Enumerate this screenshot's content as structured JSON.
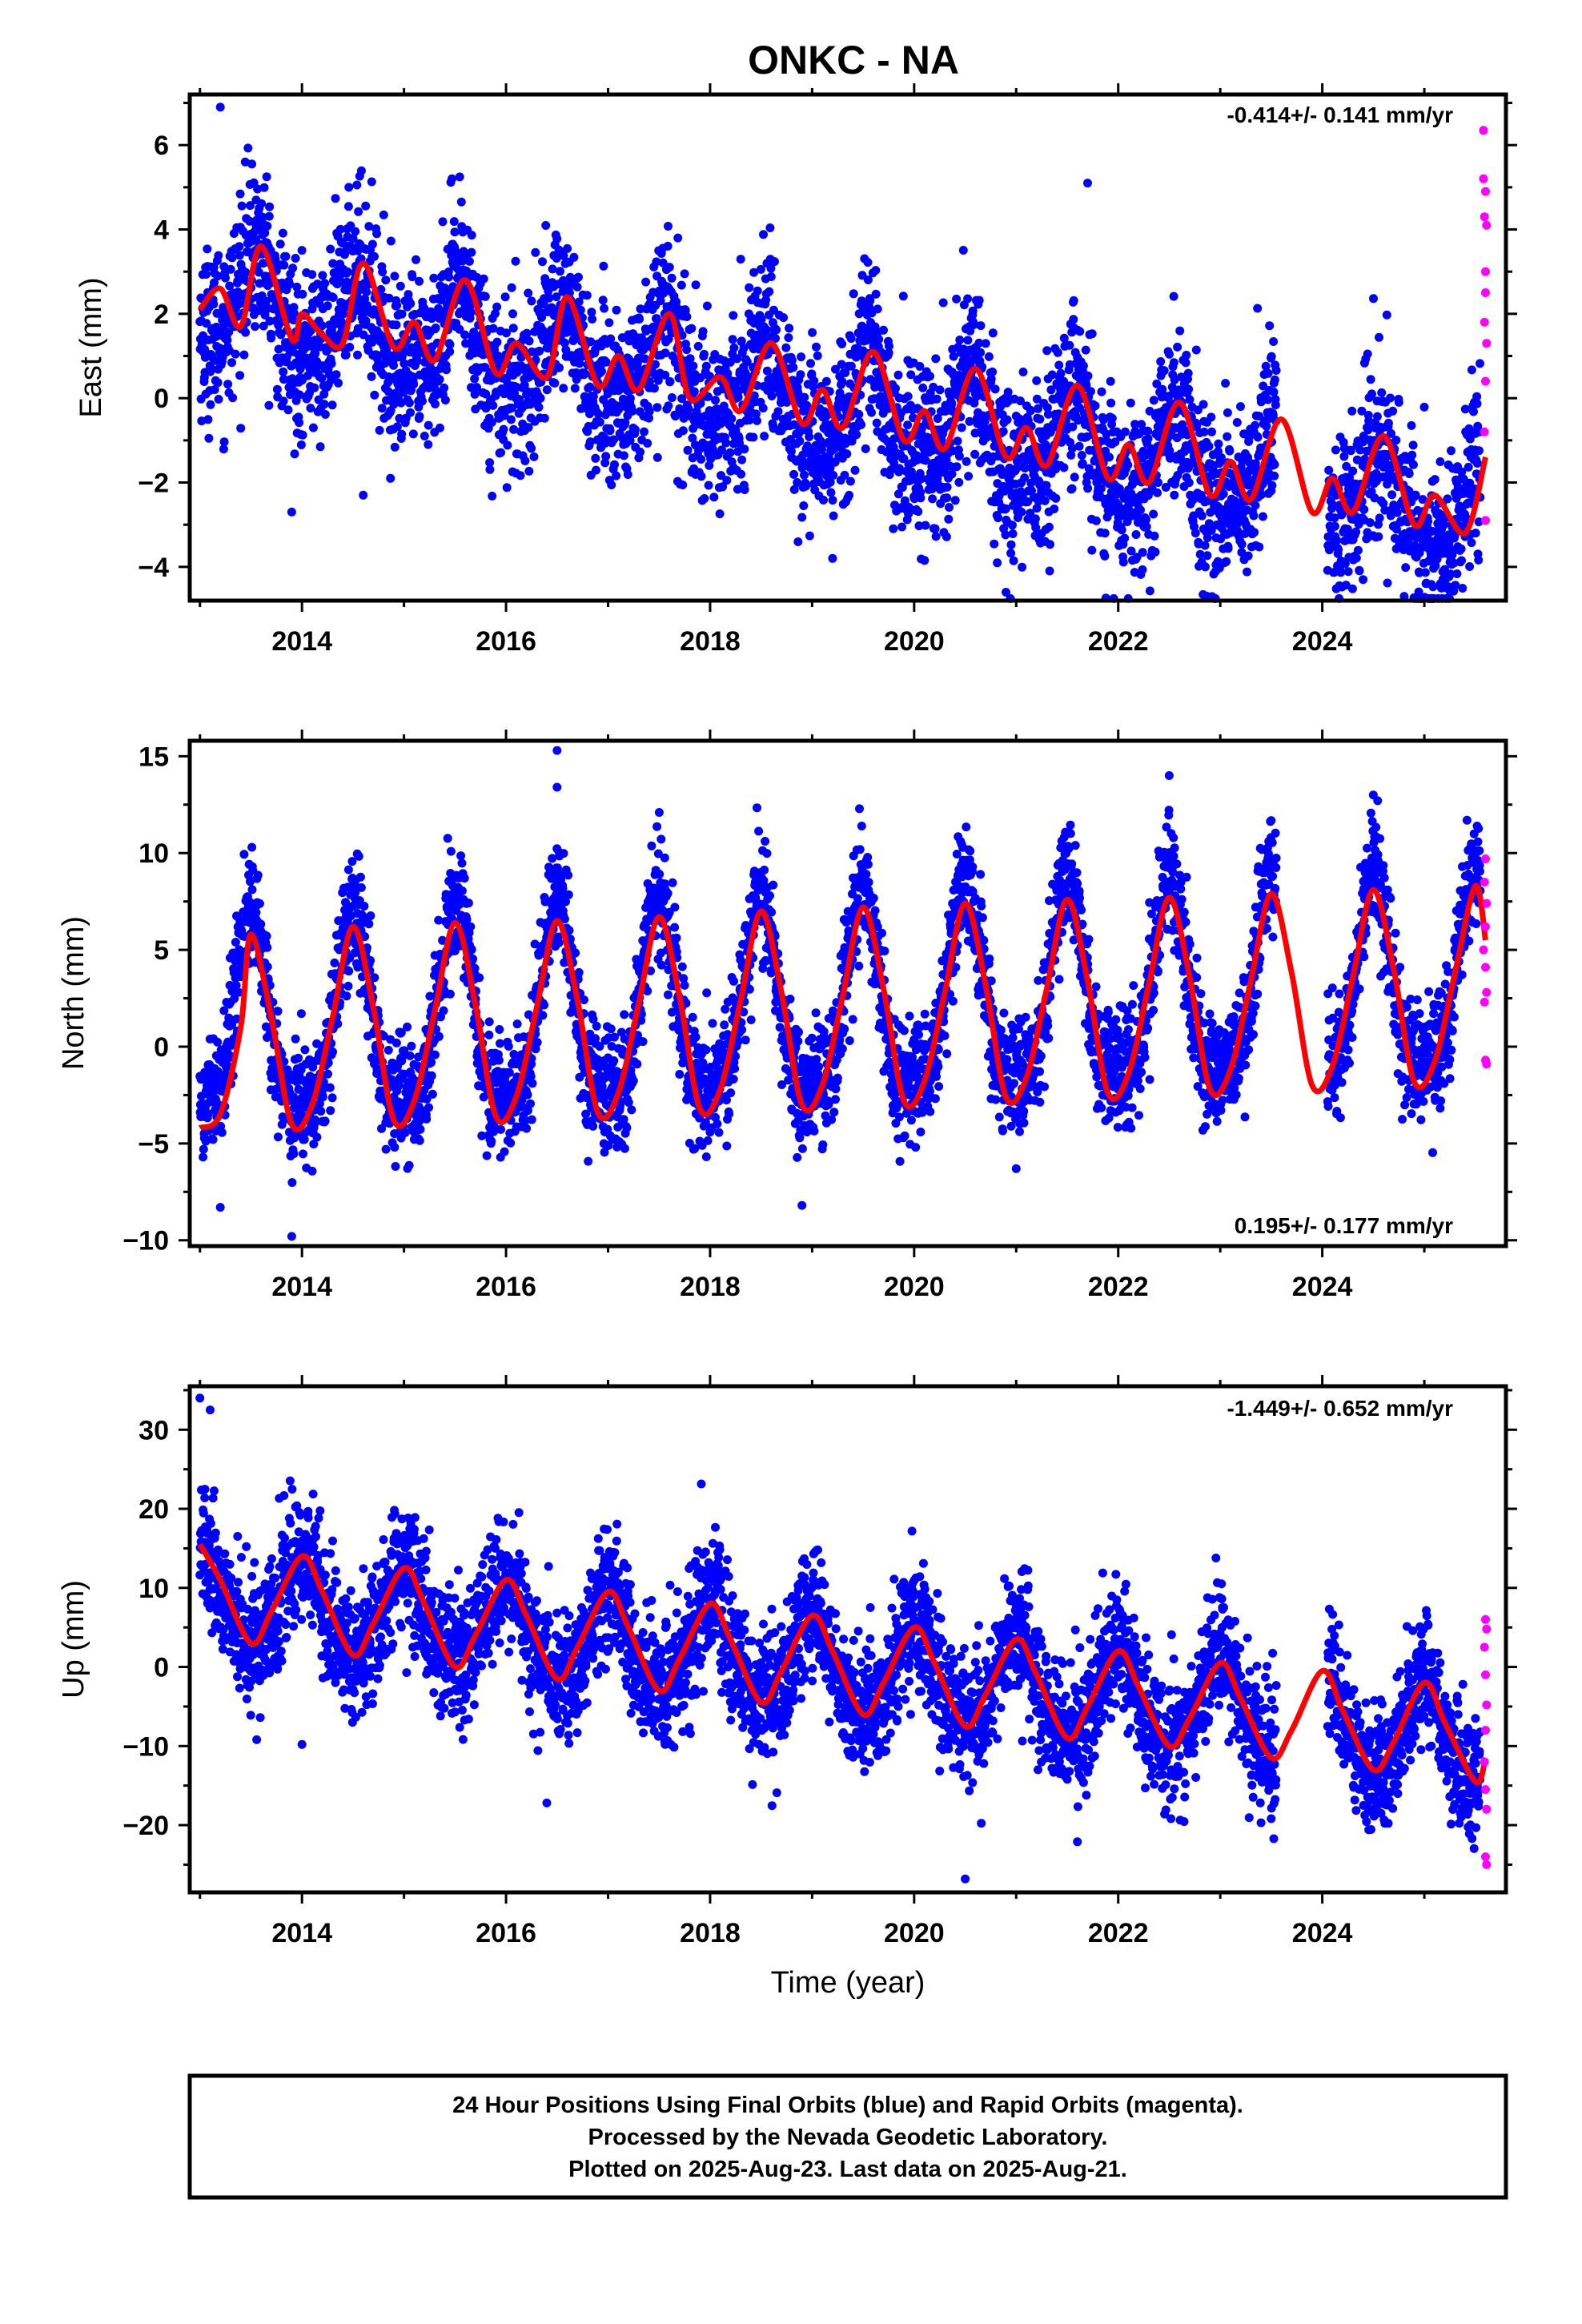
{
  "title": "ONKC - NA",
  "chart_data": [
    {
      "type": "scatter",
      "id": "east",
      "ylabel": "East (mm)",
      "xlabel": "",
      "xlim": [
        2012.9,
        2025.8
      ],
      "ylim": [
        -4.8,
        7.2
      ],
      "x_ticks": [
        2014,
        2016,
        2018,
        2020,
        2022,
        2024
      ],
      "y_ticks": [
        -4,
        -2,
        0,
        2,
        4,
        6
      ],
      "rate_label": "-0.414+/- 0.141 mm/yr",
      "rate_position": "top-right",
      "series": [
        {
          "kind": "final_orbits",
          "color": "#0000ff",
          "data_range": [
            2013.0,
            2025.55
          ],
          "model": {
            "offset": 2.4,
            "trend_per_year": -0.414,
            "annual_amp": 1.1,
            "annual_phase": 0.55,
            "semiannual_amp": 0.3,
            "noise_sd": 1.0
          },
          "outliers": [
            [
              2013.2,
              6.9
            ],
            [
              2013.9,
              -2.7
            ],
            [
              2014.6,
              -2.3
            ],
            [
              2021.7,
              5.1
            ],
            [
              2020.9,
              -4.6
            ],
            [
              2019.2,
              -3.8
            ],
            [
              2024.4,
              -4.3
            ]
          ]
        },
        {
          "kind": "rapid_orbits",
          "color": "#ff00ff",
          "points": [
            [
              2025.58,
              6.35
            ],
            [
              2025.58,
              5.2
            ],
            [
              2025.6,
              4.9
            ],
            [
              2025.59,
              4.3
            ],
            [
              2025.61,
              4.1
            ],
            [
              2025.6,
              3.0
            ],
            [
              2025.6,
              2.5
            ],
            [
              2025.59,
              1.8
            ],
            [
              2025.61,
              1.3
            ],
            [
              2025.6,
              0.4
            ],
            [
              2025.59,
              -0.8
            ],
            [
              2025.6,
              -2.9
            ]
          ]
        },
        {
          "kind": "model_fit",
          "color": "#ff0000",
          "x": [
            2013.0,
            2013.2,
            2013.4,
            2013.6,
            2013.9,
            2014.0,
            2014.2,
            2014.4,
            2014.6,
            2014.9,
            2015.1,
            2015.3,
            2015.6,
            2015.9,
            2016.1,
            2016.4,
            2016.6,
            2016.9,
            2017.1,
            2017.3,
            2017.6,
            2017.8,
            2018.1,
            2018.3,
            2018.6,
            2018.9,
            2019.1,
            2019.3,
            2019.6,
            2019.9,
            2020.1,
            2020.3,
            2020.6,
            2020.9,
            2021.1,
            2021.3,
            2021.6,
            2021.9,
            2022.1,
            2022.3,
            2022.6,
            2022.9,
            2023.1,
            2023.3,
            2023.6,
            2023.9,
            2024.1,
            2024.3,
            2024.6,
            2024.9,
            2025.1,
            2025.4,
            2025.6
          ],
          "y": [
            2.1,
            2.6,
            1.7,
            3.6,
            1.4,
            2.0,
            1.5,
            1.3,
            3.2,
            1.2,
            1.8,
            0.9,
            2.8,
            0.6,
            1.3,
            0.5,
            2.4,
            0.3,
            1.0,
            0.2,
            2.0,
            0.0,
            0.5,
            -0.3,
            1.3,
            -0.6,
            0.2,
            -0.7,
            1.1,
            -1.0,
            -0.3,
            -1.2,
            0.7,
            -1.4,
            -0.7,
            -1.6,
            0.3,
            -1.9,
            -1.1,
            -2.0,
            -0.1,
            -2.3,
            -1.5,
            -2.4,
            -0.5,
            -2.7,
            -1.9,
            -2.7,
            -0.9,
            -3.0,
            -2.3,
            -3.2,
            -1.4
          ]
        }
      ]
    },
    {
      "type": "scatter",
      "id": "north",
      "ylabel": "North (mm)",
      "xlabel": "",
      "xlim": [
        2012.9,
        2025.8
      ],
      "ylim": [
        -10.3,
        15.8
      ],
      "x_ticks": [
        2014,
        2016,
        2018,
        2020,
        2022,
        2024
      ],
      "y_ticks": [
        -10,
        -5,
        0,
        5,
        10,
        15
      ],
      "rate_label": "0.195+/- 0.177 mm/yr",
      "rate_position": "bottom-right",
      "series": [
        {
          "kind": "final_orbits",
          "color": "#0000ff",
          "data_range": [
            2013.0,
            2025.55
          ],
          "model": {
            "offset": 0.6,
            "trend_per_year": 0.195,
            "annual_amp": 4.9,
            "annual_phase": 0.5,
            "semiannual_amp": 1.4,
            "noise_sd": 1.5
          },
          "outliers": [
            [
              2016.5,
              15.3
            ],
            [
              2016.5,
              13.4
            ],
            [
              2022.5,
              14.0
            ],
            [
              2013.9,
              -9.8
            ],
            [
              2013.2,
              -8.3
            ],
            [
              2018.9,
              -8.2
            ],
            [
              2024.5,
              13.0
            ]
          ]
        },
        {
          "kind": "rapid_orbits",
          "color": "#ff00ff",
          "points": [
            [
              2025.6,
              9.7
            ],
            [
              2025.59,
              8.5
            ],
            [
              2025.61,
              7.4
            ],
            [
              2025.6,
              6.2
            ],
            [
              2025.58,
              5.0
            ],
            [
              2025.6,
              4.1
            ],
            [
              2025.61,
              2.8
            ],
            [
              2025.59,
              2.3
            ],
            [
              2025.6,
              -0.7
            ],
            [
              2025.61,
              -0.9
            ]
          ]
        },
        {
          "kind": "model_fit",
          "color": "#ff0000",
          "x": [
            2013.0,
            2013.2,
            2013.4,
            2013.5,
            2013.7,
            2013.9,
            2014.1,
            2014.3,
            2014.5,
            2014.7,
            2014.9,
            2015.1,
            2015.3,
            2015.5,
            2015.7,
            2015.9,
            2016.1,
            2016.3,
            2016.5,
            2016.7,
            2016.9,
            2017.1,
            2017.3,
            2017.5,
            2017.7,
            2017.9,
            2018.1,
            2018.3,
            2018.5,
            2018.7,
            2018.9,
            2019.1,
            2019.3,
            2019.5,
            2019.7,
            2019.9,
            2020.1,
            2020.3,
            2020.5,
            2020.7,
            2020.9,
            2021.1,
            2021.3,
            2021.5,
            2021.7,
            2021.9,
            2022.1,
            2022.3,
            2022.5,
            2022.7,
            2022.9,
            2023.1,
            2023.3,
            2023.5,
            2023.7,
            2023.9,
            2024.1,
            2024.3,
            2024.5,
            2024.7,
            2024.9,
            2025.1,
            2025.3,
            2025.5,
            2025.6
          ],
          "y": [
            -4.2,
            -3.5,
            1.0,
            5.8,
            1.5,
            -4.0,
            -3.0,
            1.5,
            6.2,
            2.0,
            -3.8,
            -2.8,
            1.8,
            6.4,
            2.2,
            -3.6,
            -2.6,
            2.0,
            6.5,
            2.4,
            -3.4,
            -2.4,
            2.2,
            6.7,
            2.6,
            -3.2,
            -2.2,
            2.4,
            7.0,
            2.8,
            -3.0,
            -2.0,
            2.6,
            7.2,
            3.0,
            -2.8,
            -1.8,
            2.8,
            7.4,
            3.2,
            -2.6,
            -1.6,
            3.0,
            7.6,
            3.4,
            -2.4,
            -1.4,
            3.2,
            7.7,
            3.6,
            -2.2,
            -1.2,
            3.4,
            7.9,
            3.8,
            -2.0,
            -1.0,
            3.6,
            8.1,
            4.0,
            -1.8,
            -0.8,
            3.8,
            8.3,
            5.5
          ]
        }
      ]
    },
    {
      "type": "scatter",
      "id": "up",
      "ylabel": "Up (mm)",
      "xlabel": "Time (year)",
      "xlim": [
        2012.9,
        2025.8
      ],
      "ylim": [
        -28.5,
        35.5
      ],
      "x_ticks": [
        2014,
        2016,
        2018,
        2020,
        2022,
        2024
      ],
      "y_ticks": [
        -20,
        -10,
        0,
        10,
        20,
        30
      ],
      "rate_label": "-1.449+/- 0.652 mm/yr",
      "rate_position": "top-right",
      "series": [
        {
          "kind": "final_orbits",
          "color": "#0000ff",
          "data_range": [
            2013.0,
            2025.55
          ],
          "model": {
            "offset": 9.0,
            "trend_per_year": -1.449,
            "annual_amp": 6.0,
            "annual_phase": 0.0,
            "semiannual_amp": 1.0,
            "noise_sd": 4.0
          },
          "outliers": [
            [
              2013.0,
              34.0
            ],
            [
              2013.1,
              32.5
            ],
            [
              2014.0,
              -9.8
            ],
            [
              2016.4,
              -17.2
            ],
            [
              2020.5,
              -26.8
            ],
            [
              2021.6,
              -22.1
            ],
            [
              2023.4,
              -19.7
            ],
            [
              2024.5,
              -18.0
            ]
          ]
        },
        {
          "kind": "rapid_orbits",
          "color": "#ff00ff",
          "points": [
            [
              2025.6,
              6.0
            ],
            [
              2025.61,
              4.8
            ],
            [
              2025.59,
              2.5
            ],
            [
              2025.6,
              -1.0
            ],
            [
              2025.61,
              -4.8
            ],
            [
              2025.6,
              -8.0
            ],
            [
              2025.59,
              -12.0
            ],
            [
              2025.6,
              -15.5
            ],
            [
              2025.61,
              -18.0
            ],
            [
              2025.6,
              -24.0
            ],
            [
              2025.61,
              -25.0
            ]
          ]
        },
        {
          "kind": "model_fit",
          "color": "#ff0000",
          "x": [
            2013.0,
            2013.2,
            2013.5,
            2013.7,
            2014.0,
            2014.2,
            2014.5,
            2014.7,
            2015.0,
            2015.2,
            2015.5,
            2015.7,
            2016.0,
            2016.2,
            2016.5,
            2016.7,
            2017.0,
            2017.2,
            2017.5,
            2017.7,
            2018.0,
            2018.2,
            2018.5,
            2018.7,
            2019.0,
            2019.2,
            2019.5,
            2019.7,
            2020.0,
            2020.2,
            2020.5,
            2020.7,
            2021.0,
            2021.2,
            2021.5,
            2021.7,
            2022.0,
            2022.2,
            2022.5,
            2022.7,
            2023.0,
            2023.2,
            2023.5,
            2023.7,
            2024.0,
            2024.2,
            2024.5,
            2024.7,
            2025.0,
            2025.2,
            2025.5,
            2025.6
          ],
          "y": [
            15.5,
            11.0,
            3.0,
            7.0,
            14.0,
            9.5,
            1.5,
            5.5,
            12.5,
            8.0,
            0.0,
            4.0,
            11.0,
            6.5,
            -1.5,
            2.5,
            9.5,
            5.0,
            -3.0,
            1.0,
            8.0,
            3.5,
            -4.5,
            -0.5,
            6.5,
            2.0,
            -6.0,
            -2.0,
            5.0,
            0.5,
            -7.5,
            -3.5,
            3.5,
            -1.0,
            -9.0,
            -5.0,
            2.0,
            -2.5,
            -10.0,
            -6.5,
            0.5,
            -4.0,
            -11.5,
            -8.0,
            -0.5,
            -5.5,
            -13.0,
            -9.5,
            -2.0,
            -7.0,
            -14.5,
            -11.5
          ]
        }
      ]
    }
  ],
  "footer": {
    "line1": "24 Hour Positions Using Final Orbits (blue) and Rapid Orbits (magenta).",
    "line2": "Processed by the Nevada Geodetic Laboratory.",
    "line3": "Plotted on 2025-Aug-23. Last data on 2025-Aug-21."
  }
}
